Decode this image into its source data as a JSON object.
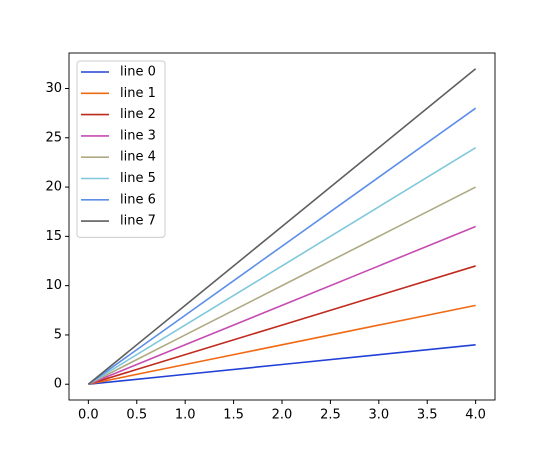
{
  "chart_data": {
    "type": "line",
    "x": [
      0,
      1,
      2,
      3,
      4
    ],
    "series": [
      {
        "name": "line 0",
        "color": "#2140d6",
        "values": [
          0,
          1,
          2,
          3,
          4
        ]
      },
      {
        "name": "line 1",
        "color": "#f06a14",
        "values": [
          0,
          2,
          4,
          6,
          8
        ]
      },
      {
        "name": "line 2",
        "color": "#c02a1e",
        "values": [
          0,
          3,
          6,
          9,
          12
        ]
      },
      {
        "name": "line 3",
        "color": "#c64bb2",
        "values": [
          0,
          4,
          8,
          12,
          16
        ]
      },
      {
        "name": "line 4",
        "color": "#aeaa84",
        "values": [
          0,
          5,
          10,
          15,
          20
        ]
      },
      {
        "name": "line 5",
        "color": "#80c8dc",
        "values": [
          0,
          6,
          12,
          18,
          24
        ]
      },
      {
        "name": "line 6",
        "color": "#5b8ee8",
        "values": [
          0,
          7,
          14,
          21,
          28
        ]
      },
      {
        "name": "line 7",
        "color": "#5f5f5f",
        "values": [
          0,
          8,
          16,
          24,
          32
        ]
      }
    ],
    "xlim": [
      -0.2,
      4.2
    ],
    "ylim": [
      -1.6,
      33.6
    ],
    "xticks": [
      {
        "value": 0,
        "label": "0.0"
      },
      {
        "value": 0.5,
        "label": "0.5"
      },
      {
        "value": 1,
        "label": "1.0"
      },
      {
        "value": 1.5,
        "label": "1.5"
      },
      {
        "value": 2,
        "label": "2.0"
      },
      {
        "value": 2.5,
        "label": "2.5"
      },
      {
        "value": 3,
        "label": "3.0"
      },
      {
        "value": 3.5,
        "label": "3.5"
      },
      {
        "value": 4,
        "label": "4.0"
      }
    ],
    "yticks": [
      0,
      5,
      10,
      15,
      20,
      25,
      30
    ],
    "legend": "upper left",
    "grid": false
  }
}
